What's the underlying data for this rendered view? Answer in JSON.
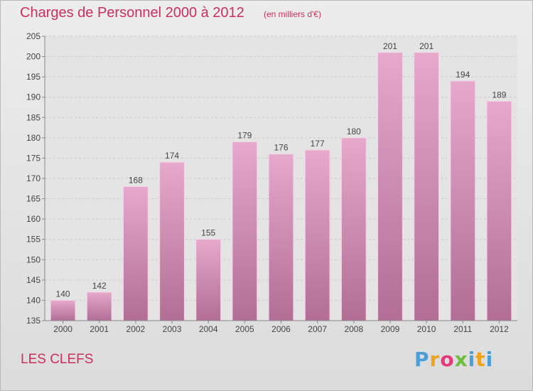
{
  "chart_data": {
    "type": "bar",
    "title": "Charges de Personnel 2000 à 2012",
    "subtitle": "(en milliers d'€)",
    "categories": [
      "2000",
      "2001",
      "2002",
      "2003",
      "2004",
      "2005",
      "2006",
      "2007",
      "2008",
      "2009",
      "2010",
      "2011",
      "2012"
    ],
    "values": [
      140,
      142,
      168,
      174,
      155,
      179,
      176,
      177,
      180,
      201,
      201,
      194,
      189
    ],
    "ylim": [
      135,
      205
    ],
    "yticks": [
      135,
      140,
      145,
      150,
      155,
      160,
      165,
      170,
      175,
      180,
      185,
      190,
      195,
      200,
      205
    ],
    "grid": true,
    "bar_color": "#d98fb6"
  },
  "footer": {
    "city": "LES CLEFS",
    "logo_text": "Proxiti"
  }
}
